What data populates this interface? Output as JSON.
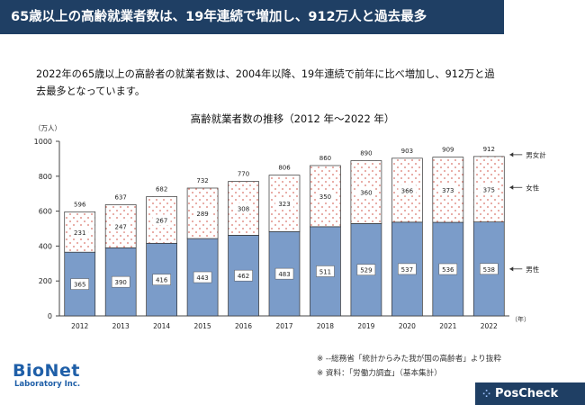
{
  "header": {
    "title": "65歳以上の高齢就業者数は、19年連続で増加し、912万人と過去最多"
  },
  "summary": {
    "line1": "2022年の65歳以上の高齢者の就業者数は、2004年以降、19年連続で前年に比べ増加し、912万と過",
    "line2": "去最多となっています。"
  },
  "chart_data": {
    "type": "bar",
    "title": "高齢就業者数の推移（2012 年〜2022 年）",
    "ylabel": "（万人）",
    "xlabel": "（年）",
    "ylim": [
      0,
      1000
    ],
    "yticks": [
      0,
      200,
      400,
      600,
      800,
      1000
    ],
    "categories": [
      "2012",
      "2013",
      "2014",
      "2015",
      "2016",
      "2017",
      "2018",
      "2019",
      "2020",
      "2021",
      "2022"
    ],
    "series": [
      {
        "name": "男性",
        "values": [
          365,
          390,
          416,
          443,
          462,
          483,
          511,
          529,
          537,
          536,
          538
        ],
        "color": "#7b9cc9"
      },
      {
        "name": "女性",
        "values": [
          231,
          247,
          267,
          289,
          308,
          323,
          350,
          360,
          366,
          373,
          375
        ],
        "color": "#d9746a"
      }
    ],
    "totals": [
      596,
      637,
      682,
      732,
      770,
      806,
      860,
      890,
      903,
      909,
      912
    ],
    "legend": {
      "total": "男女計",
      "female": "女性",
      "male": "男性"
    }
  },
  "notes": {
    "line1": "※ --総務省「統計からみた我が国の高齢者」より抜粋",
    "line2": "※ 資料：「労働力調査」（基本集計）"
  },
  "brand": {
    "line1": "BioNet",
    "line2": "Laboratory Inc."
  },
  "badge": {
    "label": "PosCheck",
    "mark": "⁘"
  },
  "colors": {
    "header_bg": "#1f3f64",
    "male": "#7b9cc9",
    "female_dot": "#d9746a",
    "brand": "#1f5fa8"
  }
}
